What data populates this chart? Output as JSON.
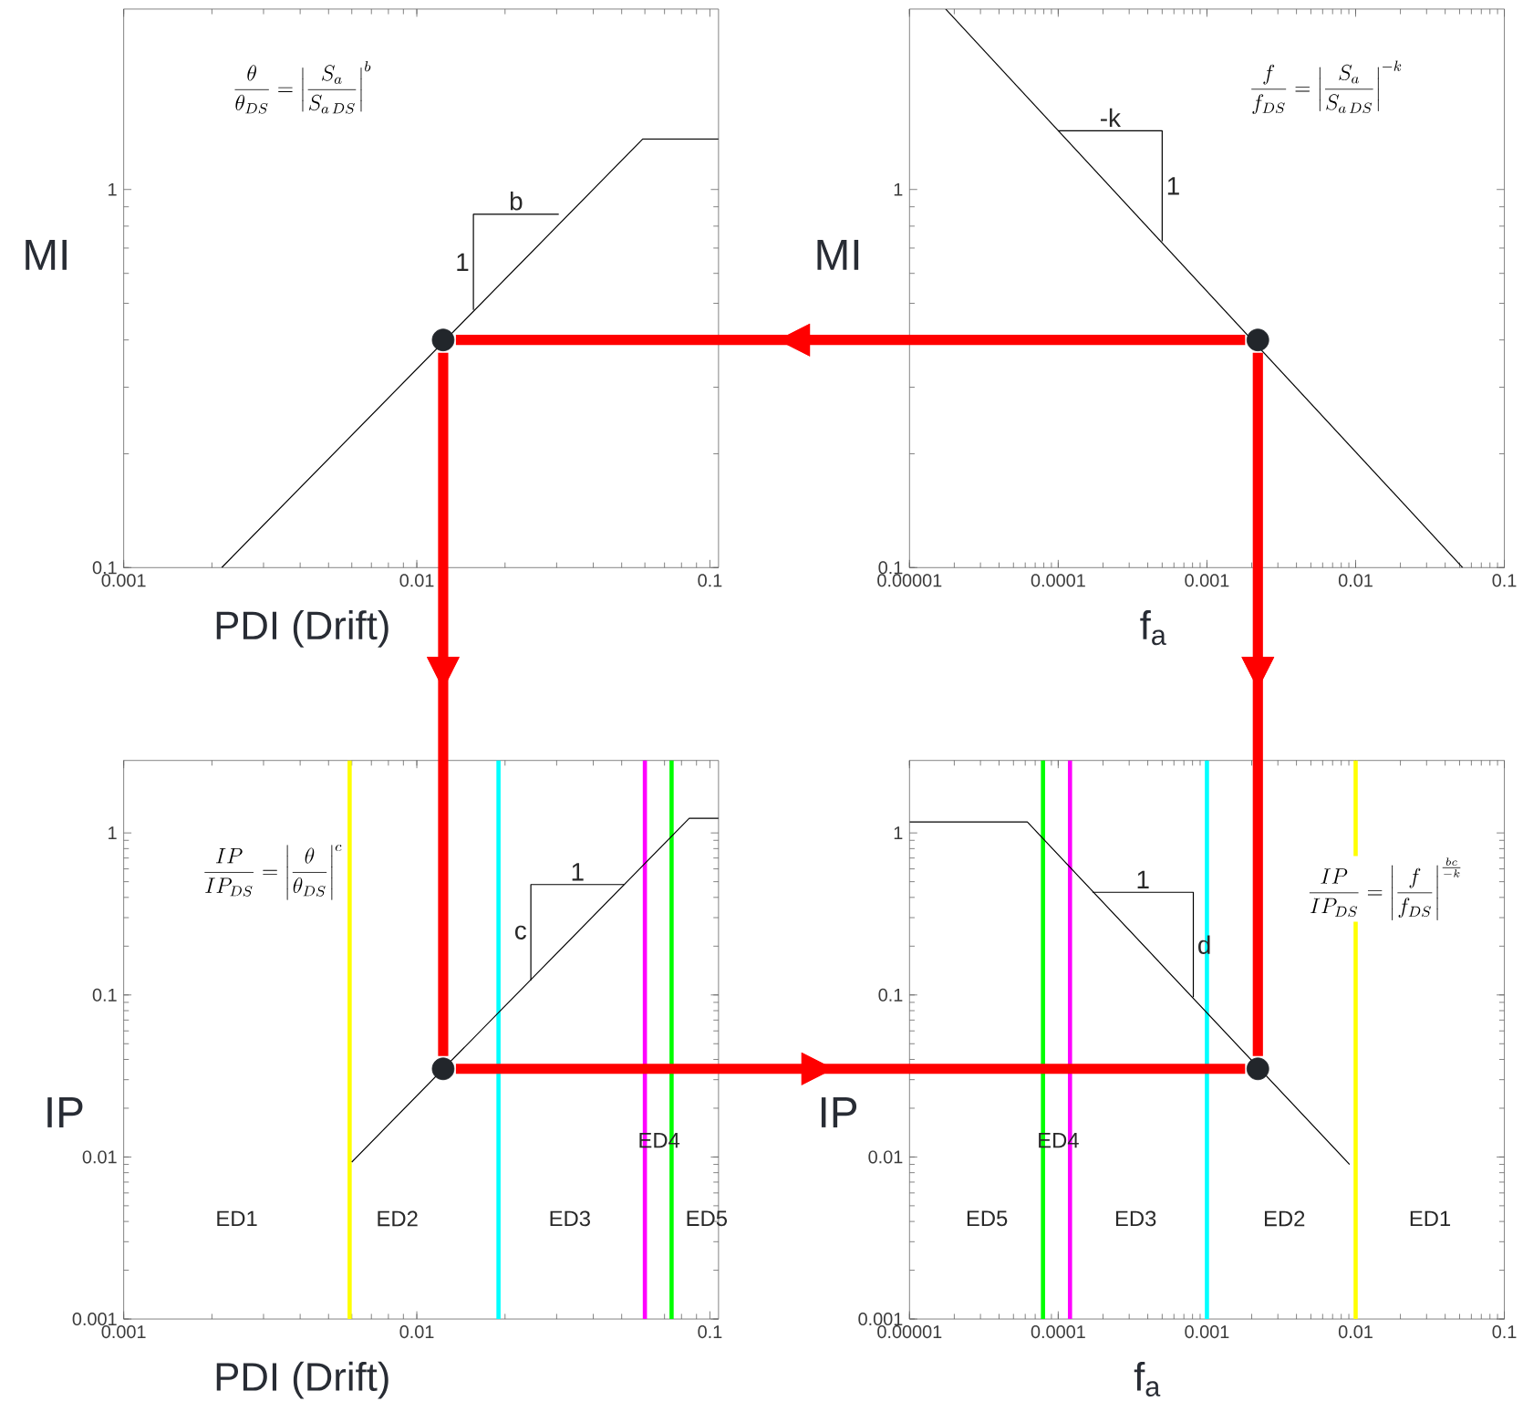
{
  "chart_data": [
    {
      "type": "line",
      "xlabel": "PDI (Drift)",
      "ylabel": "MI",
      "log": "xy",
      "xlim": [
        0.001,
        0.107
      ],
      "ylim": [
        0.1,
        3
      ],
      "xticks": [
        {
          "value": 0.001,
          "label": "0.001"
        },
        {
          "value": 0.01,
          "label": "0.01"
        },
        {
          "value": 0.1,
          "label": "0.1"
        }
      ],
      "yticks": [
        {
          "value": 0.1,
          "label": "0.1"
        },
        {
          "value": 1,
          "label": "1"
        }
      ],
      "series": [
        {
          "color": "#000000",
          "x": [
            0.00216,
            0.059,
            0.107
          ],
          "values": [
            0.1,
            1.36,
            1.36
          ]
        },
        {
          "color": "#000000",
          "x": [
            0.0156,
            0.0156,
            0.0305
          ],
          "values": [
            0.48,
            0.86,
            0.86
          ]
        },
        {
          "type": "scatter",
          "color": "#22262b",
          "x": [
            0.0123
          ],
          "values": [
            0.4
          ]
        }
      ],
      "annotations": [
        "\\frac{\\theta}{\\theta_{DS}} = \\left|\\frac{S_a}{S_{a\\,DS}}\\right|^{b}",
        "b",
        "1"
      ]
    },
    {
      "type": "line",
      "xlabel": "f$_{a}$",
      "ylabel": "MI",
      "log": "xy",
      "xlim": [
        1e-05,
        0.1
      ],
      "ylim": [
        0.1,
        3
      ],
      "xticks": [
        {
          "value": 1e-05,
          "label": "0.00001"
        },
        {
          "value": 0.0001,
          "label": "0.0001"
        },
        {
          "value": 0.001,
          "label": "0.001"
        },
        {
          "value": 0.01,
          "label": "0.01"
        },
        {
          "value": 0.1,
          "label": "0.1"
        }
      ],
      "yticks": [
        {
          "value": 0.1,
          "label": "0.1"
        },
        {
          "value": 1,
          "label": "1"
        }
      ],
      "series": [
        {
          "color": "#000000",
          "x": [
            1.75e-05,
            0.0525
          ],
          "values": [
            3,
            0.1
          ]
        },
        {
          "color": "#000000",
          "x": [
            0.0001,
            0.0005,
            0.0005
          ],
          "values": [
            1.43,
            1.43,
            0.73
          ]
        },
        {
          "type": "scatter",
          "color": "#22262b",
          "x": [
            0.0022
          ],
          "values": [
            0.4
          ]
        }
      ],
      "annotations": [
        "\\frac{f}{f_{DS}} = \\left|\\frac{S_a}{S_{a\\,DS}}\\right|^{-k}",
        "-k",
        "1"
      ]
    },
    {
      "type": "line",
      "xlabel": "PDI (Drift)",
      "ylabel": "IP",
      "log": "xy",
      "xlim": [
        0.001,
        0.107
      ],
      "ylim": [
        0.001,
        2.8
      ],
      "xticks": [
        {
          "value": 0.001,
          "label": "0.001"
        },
        {
          "value": 0.01,
          "label": "0.01"
        },
        {
          "value": 0.1,
          "label": "0.1"
        }
      ],
      "yticks": [
        {
          "value": 0.001,
          "label": "0.001"
        },
        {
          "value": 0.01,
          "label": "0.01"
        },
        {
          "value": 0.1,
          "label": "0.1"
        },
        {
          "value": 1,
          "label": "1"
        }
      ],
      "series": [
        {
          "color": "#000000",
          "x": [
            0.006,
            0.085,
            0.107
          ],
          "values": [
            0.0093,
            1.23,
            1.23
          ]
        },
        {
          "color": "#000000",
          "x": [
            0.0245,
            0.0245,
            0.051
          ],
          "values": [
            0.123,
            0.48,
            0.48
          ]
        },
        {
          "type": "scatter",
          "color": "#22262b",
          "x": [
            0.0123
          ],
          "values": [
            0.035
          ]
        }
      ],
      "ref_lines": [
        {
          "axis": "x",
          "value": 0.0059,
          "color": "#ffff00"
        },
        {
          "axis": "x",
          "value": 0.019,
          "color": "#00ffff"
        },
        {
          "axis": "x",
          "value": 0.06,
          "color": "#ff00ff"
        },
        {
          "axis": "x",
          "value": 0.074,
          "color": "#00ff00"
        }
      ],
      "annotations": [
        "\\frac{IP}{IP_{DS}} = \\left|\\frac{\\theta}{\\theta_{DS}}\\right|^{c}",
        "1",
        "c",
        "ED1",
        "ED2",
        "ED3",
        "ED4",
        "ED5"
      ]
    },
    {
      "type": "line",
      "xlabel": "f$_{a}$",
      "ylabel": "IP",
      "log": "xy",
      "xlim": [
        1e-05,
        0.1
      ],
      "ylim": [
        0.001,
        2.8
      ],
      "xticks": [
        {
          "value": 1e-05,
          "label": "0.00001"
        },
        {
          "value": 0.0001,
          "label": "0.0001"
        },
        {
          "value": 0.001,
          "label": "0.001"
        },
        {
          "value": 0.01,
          "label": "0.01"
        },
        {
          "value": 0.1,
          "label": "0.1"
        }
      ],
      "yticks": [
        {
          "value": 0.001,
          "label": "0.001"
        },
        {
          "value": 0.01,
          "label": "0.01"
        },
        {
          "value": 0.1,
          "label": "0.1"
        },
        {
          "value": 1,
          "label": "1"
        }
      ],
      "series": [
        {
          "color": "#000000",
          "x": [
            1e-05,
            6.2e-05,
            0.0091
          ],
          "values": [
            1.17,
            1.17,
            0.009
          ]
        },
        {
          "color": "#000000",
          "x": [
            0.00017,
            0.00081,
            0.00081
          ],
          "values": [
            0.43,
            0.43,
            0.097
          ]
        },
        {
          "type": "scatter",
          "color": "#22262b",
          "x": [
            0.0022
          ],
          "values": [
            0.035
          ]
        }
      ],
      "ref_lines": [
        {
          "axis": "x",
          "value": 7.9e-05,
          "color": "#00ff00"
        },
        {
          "axis": "x",
          "value": 0.00012,
          "color": "#ff00ff"
        },
        {
          "axis": "x",
          "value": 0.001,
          "color": "#00ffff"
        },
        {
          "axis": "x",
          "value": 0.01,
          "color": "#ffff00"
        }
      ],
      "annotations": [
        "\\frac{IP}{IP_{DS}} = \\left|\\frac{f}{f_{DS}}\\right|^{\\frac{bc}{-k}}",
        "1",
        "d",
        "ED5",
        "ED3",
        "ED2",
        "ED1",
        "ED4"
      ]
    }
  ]
}
